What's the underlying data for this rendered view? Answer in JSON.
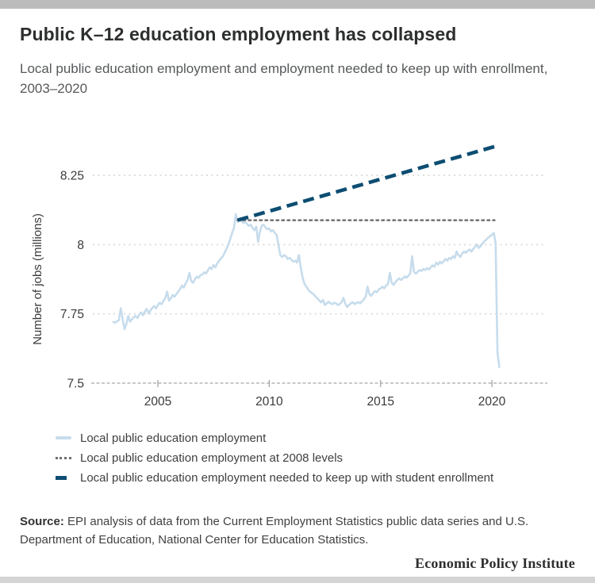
{
  "header": {
    "title": "Public K–12 education employment has collapsed",
    "subtitle": "Local public education employment and employment needed to keep up with enrollment, 2003–2020"
  },
  "footer": {
    "source_label": "Source:",
    "source_text": " EPI analysis of data from the Current Employment Statistics public data series and U.S. Department of Education, National Center for Education Statistics.",
    "branding": "Economic Policy Institute"
  },
  "colors": {
    "top_bar": "#bcbcbc",
    "bottom_bar": "#d4d4d4",
    "title_text": "#2d2e2e",
    "subtitle_text": "#56585a",
    "axis_text": "#3a3a3a",
    "gridline": "#dedede",
    "axis_line": "#c8c8c8",
    "employment_line": "#c6dcec",
    "level_2008_line": "#707070",
    "needed_line": "#0d4d72"
  },
  "chart_data": {
    "type": "line",
    "title": "Public K–12 education employment has collapsed",
    "xlabel": "",
    "ylabel": "Number of jobs (millions)",
    "xlim": [
      2002.8,
      2020.9
    ],
    "ylim": [
      7.5,
      8.42
    ],
    "x_ticks": [
      2005,
      2010,
      2015,
      2020
    ],
    "y_ticks": [
      8.25,
      8,
      7.75,
      7.5
    ],
    "grid": "horizontal-dotted",
    "legend_position": "bottom-left",
    "series": [
      {
        "name": "Local public education employment",
        "style": "solid",
        "color": "#c6dcec",
        "width": 2.6,
        "x_start": 2003.0,
        "x_step": 0.0833333,
        "y": [
          7.721,
          7.718,
          7.723,
          7.728,
          7.77,
          7.731,
          7.695,
          7.712,
          7.742,
          7.722,
          7.73,
          7.738,
          7.742,
          7.735,
          7.748,
          7.755,
          7.745,
          7.758,
          7.768,
          7.752,
          7.762,
          7.772,
          7.778,
          7.77,
          7.782,
          7.79,
          7.785,
          7.796,
          7.808,
          7.83,
          7.798,
          7.806,
          7.818,
          7.812,
          7.822,
          7.83,
          7.84,
          7.852,
          7.845,
          7.86,
          7.872,
          7.898,
          7.868,
          7.862,
          7.876,
          7.884,
          7.88,
          7.89,
          7.892,
          7.9,
          7.896,
          7.908,
          7.918,
          7.912,
          7.926,
          7.918,
          7.932,
          7.942,
          7.95,
          7.958,
          7.97,
          7.985,
          8.0,
          8.02,
          8.042,
          8.06,
          8.11,
          8.082,
          8.092,
          8.085,
          8.078,
          8.082,
          8.075,
          8.068,
          8.072,
          8.06,
          8.052,
          8.065,
          8.01,
          8.048,
          8.068,
          8.072,
          8.062,
          8.055,
          8.058,
          8.048,
          8.052,
          8.042,
          8.035,
          7.998,
          7.962,
          7.955,
          7.962,
          7.958,
          7.948,
          7.952,
          7.945,
          7.938,
          7.942,
          7.935,
          7.962,
          7.918,
          7.88,
          7.858,
          7.848,
          7.838,
          7.83,
          7.825,
          7.82,
          7.812,
          7.805,
          7.798,
          7.792,
          7.8,
          7.782,
          7.788,
          7.794,
          7.788,
          7.785,
          7.79,
          7.788,
          7.782,
          7.785,
          7.792,
          7.808,
          7.786,
          7.775,
          7.782,
          7.788,
          7.792,
          7.785,
          7.79,
          7.792,
          7.788,
          7.795,
          7.802,
          7.812,
          7.848,
          7.82,
          7.815,
          7.825,
          7.832,
          7.828,
          7.838,
          7.842,
          7.848,
          7.842,
          7.852,
          7.858,
          7.898,
          7.862,
          7.855,
          7.865,
          7.872,
          7.878,
          7.872,
          7.878,
          7.885,
          7.88,
          7.888,
          7.895,
          7.958,
          7.902,
          7.895,
          7.902,
          7.908,
          7.905,
          7.912,
          7.908,
          7.915,
          7.91,
          7.918,
          7.925,
          7.92,
          7.935,
          7.928,
          7.938,
          7.932,
          7.94,
          7.948,
          7.942,
          7.952,
          7.948,
          7.958,
          7.952,
          7.975,
          7.962,
          7.955,
          7.968,
          7.975,
          7.97,
          7.978,
          7.982,
          7.975,
          7.985,
          7.992,
          8.0,
          7.988,
          7.995,
          8.005,
          8.012,
          8.018,
          8.025,
          8.03,
          8.035,
          8.042,
          8.005,
          7.61,
          7.558
        ]
      },
      {
        "name": "Local public education employment at 2008 levels",
        "style": "dotted",
        "color": "#707070",
        "width": 2.5,
        "x": [
          2008.58,
          2020.12
        ],
        "y": [
          8.088,
          8.088
        ]
      },
      {
        "name": "Local public education employment needed to keep up with student enrollment",
        "style": "dashed",
        "color": "#0d4d72",
        "width": 4.6,
        "x": [
          2008.58,
          2020.3
        ],
        "y": [
          8.088,
          8.358
        ]
      }
    ]
  }
}
